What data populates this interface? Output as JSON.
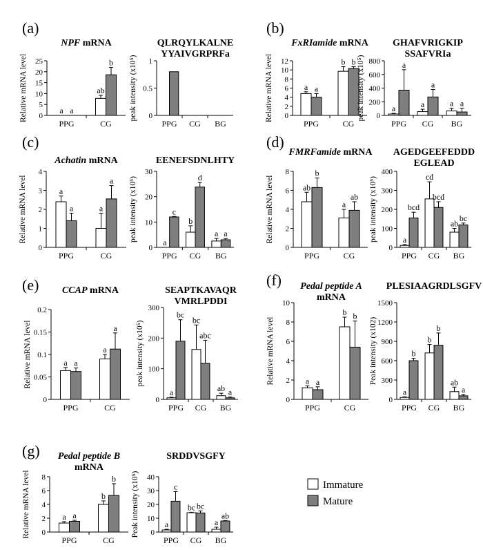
{
  "legend": {
    "items": [
      {
        "name": "Immature",
        "color": "#ffffff"
      },
      {
        "name": "Mature",
        "color": "#7f7f7f"
      }
    ]
  },
  "chart_data": [
    {
      "panel_label": "(a)",
      "title_parts": [
        {
          "t": "NPF",
          "i": true
        },
        {
          "t": " mRNA",
          "i": false
        }
      ],
      "type": "bar",
      "ylabel": "Relative mRNA level",
      "ylim": [
        0,
        25
      ],
      "yticks": [
        0,
        5,
        10,
        15,
        20,
        25
      ],
      "tick_labels": [
        "0",
        "5",
        "10",
        "15",
        "20",
        "25"
      ],
      "categories": [
        "PPG",
        "CG"
      ],
      "series": [
        {
          "name": "Immature",
          "values": [
            0,
            7.8
          ],
          "errors": [
            0,
            1.4
          ],
          "letters": [
            "a",
            "ab"
          ]
        },
        {
          "name": "Mature",
          "values": [
            0,
            18.6
          ],
          "errors": [
            0,
            3.4
          ],
          "letters": [
            "a",
            "b"
          ]
        }
      ]
    },
    {
      "title_lines": [
        "QLRQYLKALNE",
        "YYAIVGRPRFa"
      ],
      "type": "bar",
      "ylabel": "peak intensity (x10⁵)",
      "ylim": [
        0,
        1
      ],
      "yticks": [
        0,
        0.5,
        1
      ],
      "tick_labels": [
        "0",
        "0.5",
        "1"
      ],
      "categories": [
        "PPG",
        "CG",
        "BG"
      ],
      "series": [
        {
          "name": "Immature",
          "values": [
            0,
            0,
            0
          ],
          "errors": [
            0,
            0,
            0
          ],
          "letters": [
            "",
            "",
            ""
          ]
        },
        {
          "name": "Mature",
          "values": [
            0.8,
            0,
            0
          ],
          "errors": [
            0,
            0,
            0
          ],
          "letters": [
            "",
            "",
            ""
          ]
        }
      ]
    },
    {
      "panel_label": "(b)",
      "title_parts": [
        {
          "t": "FxRIamide",
          "i": true
        },
        {
          "t": " mRNA",
          "i": false
        }
      ],
      "type": "bar",
      "ylabel": "Relative mRNA level",
      "ylim": [
        0,
        12
      ],
      "yticks": [
        0,
        2,
        4,
        6,
        8,
        10,
        12
      ],
      "tick_labels": [
        "0",
        "2",
        "4",
        "6",
        "8",
        "10",
        "12"
      ],
      "categories": [
        "PPG",
        "CG"
      ],
      "series": [
        {
          "name": "Immature",
          "values": [
            4.8,
            9.7
          ],
          "errors": [
            0.4,
            1.0
          ],
          "letters": [
            "a",
            "b"
          ]
        },
        {
          "name": "Mature",
          "values": [
            4.0,
            10.3
          ],
          "errors": [
            0.8,
            0.4
          ],
          "letters": [
            "a",
            "b"
          ]
        }
      ]
    },
    {
      "title_lines": [
        "GHAFVRIGKIP",
        "SSAFVRIa"
      ],
      "type": "bar",
      "ylabel": "peak intensity (x10⁵)",
      "ylim": [
        0,
        800
      ],
      "yticks": [
        0,
        200,
        400,
        600,
        800
      ],
      "tick_labels": [
        "0",
        "200",
        "400",
        "600",
        "800"
      ],
      "categories": [
        "PPG",
        "CG",
        "BG"
      ],
      "series": [
        {
          "name": "Immature",
          "values": [
            20,
            55,
            65
          ],
          "errors": [
            10,
            35,
            40
          ],
          "letters": [
            "a",
            "a",
            "a"
          ]
        },
        {
          "name": "Mature",
          "values": [
            370,
            270,
            50
          ],
          "errors": [
            300,
            110,
            55
          ],
          "letters": [
            "a",
            "a",
            "a"
          ]
        }
      ]
    },
    {
      "panel_label": "(c)",
      "title_parts": [
        {
          "t": "Achatin",
          "i": true
        },
        {
          "t": " mRNA",
          "i": false
        }
      ],
      "type": "bar",
      "ylabel": "Relative mRNA level",
      "ylim": [
        0,
        4
      ],
      "yticks": [
        0,
        1,
        2,
        3,
        4
      ],
      "tick_labels": [
        "0",
        "1",
        "2",
        "3",
        "4"
      ],
      "categories": [
        "PPG",
        "CG"
      ],
      "series": [
        {
          "name": "Immature",
          "values": [
            2.4,
            1.0
          ],
          "errors": [
            0.3,
            0.8
          ],
          "letters": [
            "a",
            "a"
          ]
        },
        {
          "name": "Mature",
          "values": [
            1.4,
            2.55
          ],
          "errors": [
            0.4,
            0.7
          ],
          "letters": [
            "a",
            "a"
          ]
        }
      ]
    },
    {
      "title_lines": [
        "EENEFSDNLHTY"
      ],
      "type": "bar",
      "ylabel": "peak intensity (x10⁵)",
      "ylim": [
        0,
        30
      ],
      "yticks": [
        0,
        10,
        20,
        30
      ],
      "tick_labels": [
        "0",
        "10",
        "20",
        "30"
      ],
      "categories": [
        "PPG",
        "CG",
        "BG"
      ],
      "series": [
        {
          "name": "Immature",
          "values": [
            0,
            6.0,
            2.5
          ],
          "errors": [
            0,
            2.5,
            1.0
          ],
          "letters": [
            "a",
            "b",
            "a"
          ]
        },
        {
          "name": "Mature",
          "values": [
            12.0,
            23.8,
            3.0
          ],
          "errors": [
            0.2,
            1.8,
            0.5
          ],
          "letters": [
            "c",
            "d",
            "a"
          ]
        }
      ]
    },
    {
      "panel_label": "(d)",
      "title_parts": [
        {
          "t": "FMRFamide",
          "i": true
        },
        {
          "t": " mRNA",
          "i": false
        }
      ],
      "type": "bar",
      "ylabel": "Relative mRNA level",
      "ylim": [
        0,
        8
      ],
      "yticks": [
        0,
        2,
        4,
        6,
        8
      ],
      "tick_labels": [
        "0",
        "2",
        "4",
        "6",
        "8"
      ],
      "categories": [
        "PPG",
        "CG"
      ],
      "series": [
        {
          "name": "Immature",
          "values": [
            4.8,
            3.1
          ],
          "errors": [
            1.0,
            0.9
          ],
          "letters": [
            "ab",
            "a"
          ]
        },
        {
          "name": "Mature",
          "values": [
            6.3,
            3.9
          ],
          "errors": [
            1.0,
            0.9
          ],
          "letters": [
            "b",
            "ab"
          ]
        }
      ]
    },
    {
      "title_lines": [
        "AGEDGEEFEDDD",
        "EGLEAD"
      ],
      "type": "bar",
      "ylabel": "peak intensity (x10⁵)",
      "ylim": [
        0,
        400
      ],
      "yticks": [
        0,
        100,
        200,
        300,
        400
      ],
      "tick_labels": [
        "0",
        "100",
        "200",
        "300",
        "400"
      ],
      "categories": [
        "PPG",
        "CG",
        "BG"
      ],
      "series": [
        {
          "name": "Immature",
          "values": [
            10,
            255,
            80
          ],
          "errors": [
            5,
            90,
            20
          ],
          "letters": [
            "a",
            "cd",
            "ab"
          ]
        },
        {
          "name": "Mature",
          "values": [
            155,
            210,
            118
          ],
          "errors": [
            30,
            30,
            10
          ],
          "letters": [
            "bcd",
            "bcd",
            "bc"
          ]
        }
      ]
    },
    {
      "panel_label": "(e)",
      "title_parts": [
        {
          "t": "CCAP",
          "i": true
        },
        {
          "t": " mRNA",
          "i": false
        }
      ],
      "type": "bar",
      "ylabel": "Relative mRNA level",
      "ylim": [
        0,
        0.2
      ],
      "yticks": [
        0,
        0.05,
        0.1,
        0.15,
        0.2
      ],
      "tick_labels": [
        "0",
        "0.05",
        "0.1",
        "0.15",
        "0.2"
      ],
      "categories": [
        "PPG",
        "CG"
      ],
      "series": [
        {
          "name": "Immature",
          "values": [
            0.064,
            0.09
          ],
          "errors": [
            0.007,
            0.01
          ],
          "letters": [
            "a",
            "a"
          ]
        },
        {
          "name": "Mature",
          "values": [
            0.062,
            0.112
          ],
          "errors": [
            0.008,
            0.036
          ],
          "letters": [
            "a",
            "a"
          ]
        }
      ]
    },
    {
      "title_lines": [
        "SEAPTKAVAQR",
        "VMRLPDDI"
      ],
      "type": "bar",
      "ylabel": "peak intensity (x10⁵)",
      "ylim": [
        0,
        300
      ],
      "yticks": [
        0,
        100,
        200,
        300
      ],
      "tick_labels": [
        "0",
        "100",
        "200",
        "300"
      ],
      "categories": [
        "PPG",
        "CG",
        "BG"
      ],
      "series": [
        {
          "name": "Immature",
          "values": [
            5,
            163,
            12
          ],
          "errors": [
            2,
            80,
            8
          ],
          "letters": [
            "a",
            "bc",
            "ab"
          ]
        },
        {
          "name": "Mature",
          "values": [
            190,
            118,
            5
          ],
          "errors": [
            70,
            75,
            3
          ],
          "letters": [
            "bc",
            "abc",
            "a"
          ]
        }
      ]
    },
    {
      "panel_label": "(f)",
      "title_parts": [
        {
          "t": "Pedal peptide A",
          "i": true
        },
        {
          "t": "\nmRNA",
          "i": false
        }
      ],
      "type": "bar",
      "ylabel": "Relative mRNA level",
      "ylim": [
        0,
        10
      ],
      "yticks": [
        0,
        2,
        4,
        6,
        8,
        10
      ],
      "tick_labels": [
        "0",
        "2",
        "4",
        "6",
        "8",
        "10"
      ],
      "categories": [
        "PPG",
        "CG"
      ],
      "series": [
        {
          "name": "Immature",
          "values": [
            1.2,
            7.5
          ],
          "errors": [
            0.2,
            1.0
          ],
          "letters": [
            "a",
            "b"
          ]
        },
        {
          "name": "Mature",
          "values": [
            1.0,
            5.4
          ],
          "errors": [
            0.3,
            2.7
          ],
          "letters": [
            "a",
            "b"
          ]
        }
      ]
    },
    {
      "title_lines": [
        "PLESIAAGRDLSGFV"
      ],
      "type": "bar",
      "ylabel": "Peak intensity (x102)",
      "ylim": [
        0,
        1500
      ],
      "yticks": [
        0,
        300,
        600,
        900,
        1200,
        1500
      ],
      "tick_labels": [
        "0",
        "300",
        "600",
        "900",
        "1200",
        "1500"
      ],
      "categories": [
        "PPG",
        "CG",
        "BG"
      ],
      "series": [
        {
          "name": "Immature",
          "values": [
            30,
            720,
            120
          ],
          "errors": [
            10,
            130,
            70
          ],
          "letters": [
            "a",
            "b",
            "ab"
          ]
        },
        {
          "name": "Mature",
          "values": [
            600,
            840,
            55
          ],
          "errors": [
            35,
            190,
            20
          ],
          "letters": [
            "b",
            "b",
            "a"
          ]
        }
      ]
    },
    {
      "panel_label": "(g)",
      "title_parts": [
        {
          "t": "Pedal peptide B",
          "i": true
        },
        {
          "t": "\nmRNA",
          "i": false
        }
      ],
      "type": "bar",
      "ylabel": "Relative mRNA level",
      "ylim": [
        0,
        8
      ],
      "yticks": [
        0,
        2,
        4,
        6,
        8
      ],
      "tick_labels": [
        "0",
        "2",
        "4",
        "6",
        "8"
      ],
      "categories": [
        "PPG",
        "CG"
      ],
      "series": [
        {
          "name": "Immature",
          "values": [
            1.3,
            4.0
          ],
          "errors": [
            0.2,
            0.5
          ],
          "letters": [
            "a",
            "b"
          ]
        },
        {
          "name": "Mature",
          "values": [
            1.55,
            5.3
          ],
          "errors": [
            0.15,
            1.7
          ],
          "letters": [
            "a",
            "b"
          ]
        }
      ]
    },
    {
      "title_lines": [
        "SRDDVSGFY"
      ],
      "type": "bar",
      "ylabel": "Peak intensity (x10⁵)",
      "ylim": [
        0,
        40
      ],
      "yticks": [
        0,
        10,
        20,
        30,
        40
      ],
      "tick_labels": [
        "0",
        "10",
        "20",
        "30",
        "40"
      ],
      "categories": [
        "PPG",
        "CG",
        "BG"
      ],
      "series": [
        {
          "name": "Immature",
          "values": [
            1.5,
            14.0,
            2.0
          ],
          "errors": [
            0.5,
            0.3,
            1.5
          ],
          "letters": [
            "a",
            "bc",
            "a"
          ]
        },
        {
          "name": "Mature",
          "values": [
            22.3,
            13.8,
            8.0
          ],
          "errors": [
            7.0,
            1.5,
            0.3
          ],
          "letters": [
            "c",
            "bc",
            "ab"
          ]
        }
      ]
    }
  ]
}
